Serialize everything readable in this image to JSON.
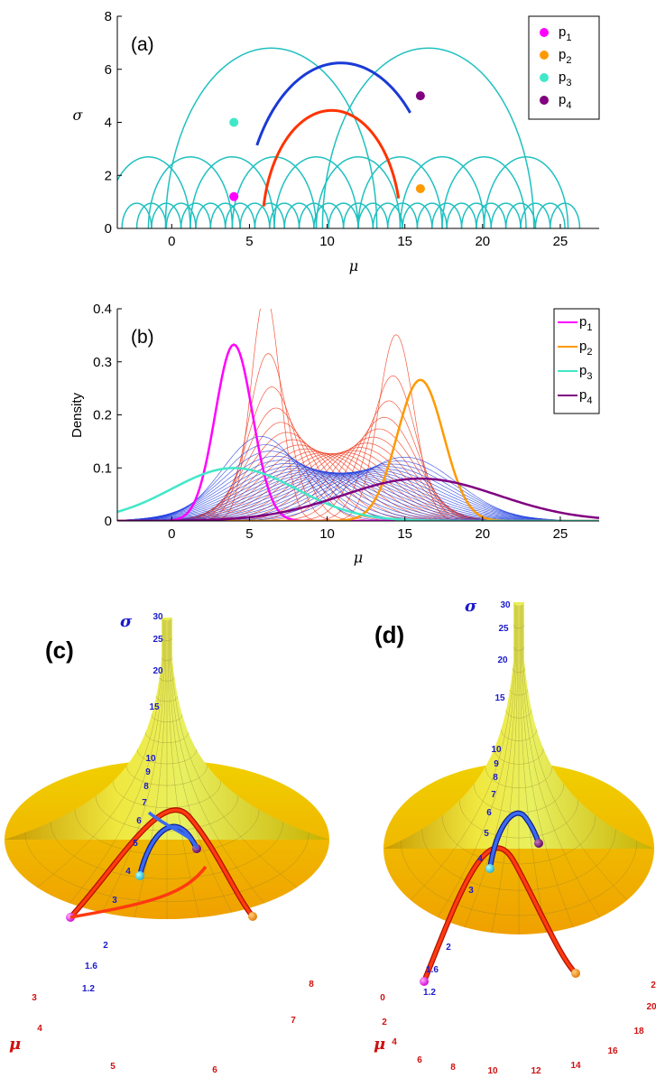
{
  "chart_data": [
    {
      "panel": "(a)",
      "type": "line",
      "xlabel": "μ",
      "ylabel": "σ",
      "xlim": [
        -3.5,
        27.5
      ],
      "ylim": [
        0,
        8
      ],
      "xticks": [
        0,
        5,
        10,
        15,
        20,
        25
      ],
      "yticks": [
        0,
        2,
        4,
        6,
        8
      ],
      "legend_placement": "top-right",
      "points": [
        {
          "name": "p1",
          "mu": 4,
          "sigma": 1.2,
          "color": "#ff00ff"
        },
        {
          "name": "p2",
          "mu": 16,
          "sigma": 1.5,
          "color": "#ff9900"
        },
        {
          "name": "p3",
          "mu": 4,
          "sigma": 4,
          "color": "#40e8c8"
        },
        {
          "name": "p4",
          "mu": 16,
          "sigma": 5,
          "color": "#800080"
        }
      ],
      "geodesics": [
        {
          "from": "p1",
          "to": "p2",
          "center": 10.29,
          "radius": 4.45,
          "color": "#ff3300"
        },
        {
          "from": "p3",
          "to": "p4",
          "center": 10.88,
          "radius": 6.24,
          "color": "#1a3ad6"
        }
      ],
      "tessellation_color": "#20c0c0",
      "tessellation_arcs": [
        {
          "center": 12,
          "radius": 0.95
        },
        {
          "center": 10.1,
          "radius": 0.95
        },
        {
          "center": 13.9,
          "radius": 0.95
        },
        {
          "center": 8.2,
          "radius": 0.95
        },
        {
          "center": 15.8,
          "radius": 0.95
        },
        {
          "center": 6.3,
          "radius": 0.95
        },
        {
          "center": 17.7,
          "radius": 0.95
        },
        {
          "center": 4.4,
          "radius": 0.95
        },
        {
          "center": 19.6,
          "radius": 0.95
        },
        {
          "center": 2.5,
          "radius": 0.95
        },
        {
          "center": 21.5,
          "radius": 0.95
        },
        {
          "center": 0.6,
          "radius": 0.95
        },
        {
          "center": 23.4,
          "radius": 0.95
        },
        {
          "center": -1.3,
          "radius": 0.95
        },
        {
          "center": 25.3,
          "radius": 0.95
        },
        {
          "center": 11.05,
          "radius": 0.95
        },
        {
          "center": 12.95,
          "radius": 0.95
        },
        {
          "center": 9.15,
          "radius": 0.95
        },
        {
          "center": 14.85,
          "radius": 0.95
        },
        {
          "center": 7.25,
          "radius": 0.95
        },
        {
          "center": 16.75,
          "radius": 0.95
        },
        {
          "center": 5.35,
          "radius": 0.95
        },
        {
          "center": 18.65,
          "radius": 0.95
        },
        {
          "center": 3.45,
          "radius": 0.95
        },
        {
          "center": 20.55,
          "radius": 0.95
        },
        {
          "center": 1.55,
          "radius": 0.95
        },
        {
          "center": 22.45,
          "radius": 0.95
        },
        {
          "center": -0.35,
          "radius": 0.95
        },
        {
          "center": 24.35,
          "radius": 0.95
        },
        {
          "center": -2.25,
          "radius": 0.95
        },
        {
          "center": 12,
          "radius": 2.7
        },
        {
          "center": 6.6,
          "radius": 2.7
        },
        {
          "center": 17.4,
          "radius": 2.7
        },
        {
          "center": 1.2,
          "radius": 2.7
        },
        {
          "center": 22.8,
          "radius": 2.7
        },
        {
          "center": 9.3,
          "radius": 2.7
        },
        {
          "center": 14.7,
          "radius": 2.7
        },
        {
          "center": 3.9,
          "radius": 2.7
        },
        {
          "center": 20.1,
          "radius": 2.7
        },
        {
          "center": -1.5,
          "radius": 2.7
        },
        {
          "center": 6.4,
          "radius": 6.8
        },
        {
          "center": 16.5,
          "radius": 6.8
        }
      ]
    },
    {
      "panel": "(b)",
      "type": "line",
      "xlabel": "μ",
      "ylabel": "Density",
      "xlim": [
        -3.5,
        27.5
      ],
      "ylim": [
        0,
        0.4
      ],
      "xticks": [
        0,
        5,
        10,
        15,
        20,
        25
      ],
      "yticks": [
        0,
        0.1,
        0.2,
        0.3,
        0.4
      ],
      "legend_placement": "top-right",
      "series": [
        {
          "name": "p1",
          "mu": 4,
          "sigma": 1.2,
          "color": "#ff00ff"
        },
        {
          "name": "p2",
          "mu": 16,
          "sigma": 1.5,
          "color": "#ff9900"
        },
        {
          "name": "p3",
          "mu": 4,
          "sigma": 4,
          "color": "#40e8c8"
        },
        {
          "name": "p4",
          "mu": 16,
          "sigma": 5,
          "color": "#800080"
        }
      ],
      "interpolation_families": [
        {
          "from": "p1",
          "to": "p2",
          "color": "#f03010",
          "steps": 24
        },
        {
          "from": "p3",
          "to": "p4",
          "color": "#2040e0",
          "steps": 24
        }
      ]
    },
    {
      "panel": "(c)",
      "type": "surface",
      "axis_sigma": "σ",
      "axis_mu": "μ",
      "sigma_ticks": [
        "30",
        "25",
        "20",
        "15",
        "10",
        "9",
        "8",
        "7",
        "6",
        "5",
        "4",
        "3",
        "2",
        "1.6",
        "1.2"
      ],
      "mu_ticks": [
        "3",
        "4",
        "5",
        "6",
        "7",
        "8"
      ]
    },
    {
      "panel": "(d)",
      "type": "surface",
      "axis_sigma": "σ",
      "axis_mu": "μ",
      "sigma_ticks": [
        "30",
        "25",
        "20",
        "15",
        "10",
        "9",
        "8",
        "7",
        "6",
        "5",
        "4",
        "3",
        "2",
        "1.6",
        "1.2"
      ],
      "mu_ticks": [
        "0",
        "2",
        "4",
        "6",
        "8",
        "10",
        "12",
        "14",
        "16",
        "18",
        "20",
        "2"
      ]
    }
  ],
  "legend_labels": {
    "p1": "p",
    "p2": "p",
    "p3": "p",
    "p4": "p",
    "sub1": "1",
    "sub2": "2",
    "sub3": "3",
    "sub4": "4"
  }
}
